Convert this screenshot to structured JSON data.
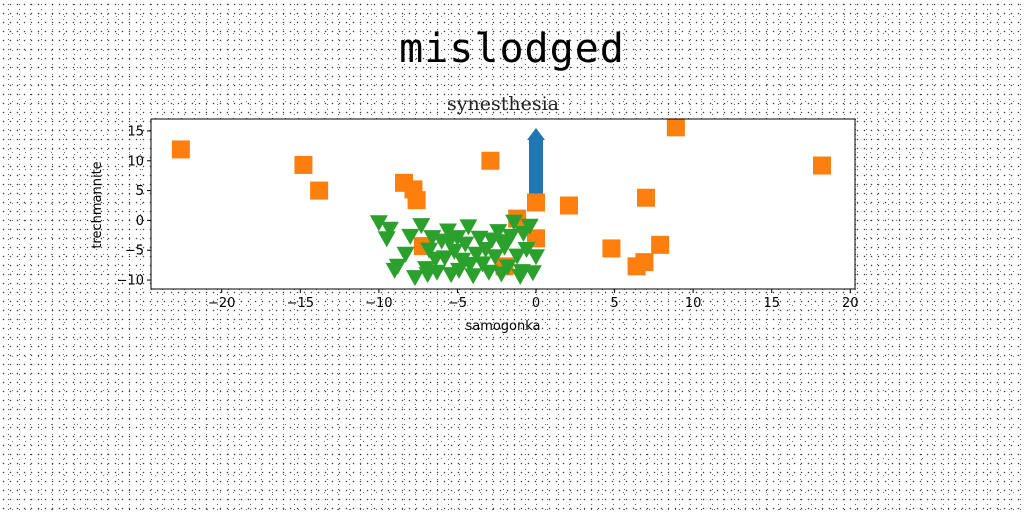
{
  "suptitle": "mislodged",
  "chart_data": {
    "type": "scatter",
    "title": "synesthesia",
    "xlabel": "samogonka",
    "ylabel": "trechmannite",
    "xlim": [
      -24.5,
      20.3
    ],
    "ylim": [
      -11.5,
      17
    ],
    "xticks": [
      -20,
      -15,
      -10,
      -5,
      0,
      5,
      10,
      15,
      20
    ],
    "xtick_labels": [
      "−20",
      "−15",
      "−10",
      "−5",
      "0",
      "5",
      "10",
      "15",
      "20"
    ],
    "yticks": [
      -10,
      -5,
      0,
      5,
      10,
      15
    ],
    "ytick_labels": [
      "−10",
      "−5",
      "0",
      "5",
      "10",
      "15"
    ],
    "grid": false,
    "arrow": {
      "x": 0,
      "y_start": 3,
      "y_end": 15.5,
      "color": "#1f77b4"
    },
    "series": [
      {
        "marker": "square",
        "color": "#ff7f0e",
        "x": [
          -22.6,
          -14.8,
          -13.8,
          -8.4,
          -7.8,
          -7.6,
          -2.9,
          -1.2,
          0,
          0,
          2.1,
          4.8,
          6.4,
          6.9,
          7.0,
          7.9,
          8.9,
          18.2,
          -7.2,
          -2.0
        ],
        "y": [
          11.9,
          9.3,
          5.0,
          6.3,
          5.2,
          3.4,
          10.0,
          0.3,
          3.0,
          -3.0,
          2.5,
          -4.7,
          -7.7,
          -7.0,
          3.8,
          -4.1,
          15.6,
          9.2,
          -4.3,
          -7.7
        ]
      },
      {
        "marker": "triangle-down",
        "color": "#2ca02c",
        "x": [
          -10,
          -9.3,
          -9.5,
          -9.0,
          -8.3,
          -8.0,
          -7.7,
          -7.3,
          -7.0,
          -6.8,
          -6.6,
          -6.4,
          -6.3,
          -6.0,
          -5.8,
          -5.6,
          -5.4,
          -5.2,
          -5.0,
          -4.9,
          -4.7,
          -4.5,
          -4.3,
          -4.0,
          -3.8,
          -3.6,
          -3.4,
          -3.2,
          -3.0,
          -2.8,
          -2.6,
          -2.4,
          -2.2,
          -2.0,
          -1.8,
          -1.6,
          -1.4,
          -1.2,
          -1.0,
          -0.8,
          -0.6,
          -0.4,
          -0.2,
          0,
          -8.8,
          -6.9,
          -5.5,
          -4.2,
          -2.1,
          -0.9
        ],
        "y": [
          -0.3,
          -1.4,
          -3.0,
          -8.3,
          -5.6,
          -2.6,
          -9.5,
          -0.8,
          -8.0,
          -4.9,
          -2.8,
          -6.4,
          -8.6,
          -3.4,
          -6.2,
          -1.7,
          -9.0,
          -5.1,
          -2.8,
          -8.3,
          -6.6,
          -3.9,
          -1.0,
          -9.2,
          -5.6,
          -2.9,
          -7.2,
          -4.8,
          -8.6,
          -3.2,
          -6.0,
          -1.8,
          -8.9,
          -4.4,
          -7.7,
          -2.6,
          -0.2,
          -5.9,
          -9.3,
          -2.1,
          -4.8,
          -0.9,
          -8.7,
          -6.0,
          -7.6,
          -9.0,
          -3.5,
          -7.3,
          -3.5,
          -8.5
        ]
      }
    ]
  }
}
